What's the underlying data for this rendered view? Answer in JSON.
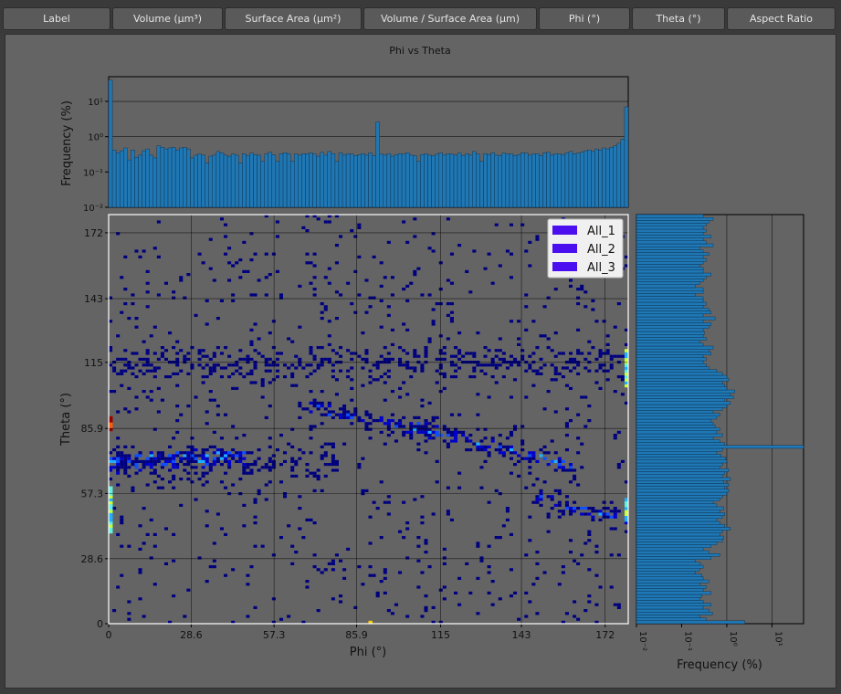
{
  "tabs": [
    {
      "label": "Label"
    },
    {
      "label": "Volume (µm³)"
    },
    {
      "label": "Surface Area (µm²)"
    },
    {
      "label": "Volume / Surface Area (µm)"
    },
    {
      "label": "Phi (°)"
    },
    {
      "label": "Theta (°)"
    },
    {
      "label": "Aspect Ratio"
    }
  ],
  "colors": {
    "bar": "#1f77b4",
    "panel_bg": "#646464",
    "legend_patch": "#4b0eef",
    "heat_scale": [
      "#00007f",
      "#0000cc",
      "#0f4fff",
      "#1fb0ff",
      "#5ff0e0",
      "#c8ff3c",
      "#ffd000",
      "#ff5a00",
      "#9a0000"
    ]
  },
  "chart_data": {
    "type": "heatmap",
    "title": "Phi vs Theta",
    "xlabel": "Phi (°)",
    "ylabel": "Theta (°)",
    "xlim": [
      0,
      180
    ],
    "ylim": [
      0,
      180
    ],
    "xticks": [
      "0",
      "28.6",
      "57.3",
      "85.9",
      "115",
      "143",
      "172"
    ],
    "yticks": [
      "0",
      "28.6",
      "57.3",
      "85.9",
      "115",
      "143",
      "172"
    ],
    "tick_values": [
      0,
      28.6,
      57.3,
      85.9,
      115,
      143,
      172
    ],
    "grid": true,
    "legend": {
      "placement": "top-right",
      "entries": [
        "All_1",
        "All_2",
        "All_3"
      ]
    },
    "bins": 140,
    "density_features": {
      "ridges": [
        {
          "axis": "theta",
          "center": 115,
          "phi_range": [
            0,
            180
          ],
          "strength": "medium"
        },
        {
          "axis": "theta",
          "center": 70,
          "phi_range": [
            0,
            80
          ],
          "strength": "medium"
        },
        {
          "shape": "line",
          "from": [
            0,
            70
          ],
          "to": [
            45,
            75
          ],
          "strength": "high"
        },
        {
          "shape": "line",
          "from": [
            70,
            95
          ],
          "to": [
            110,
            85
          ],
          "strength": "high"
        },
        {
          "shape": "line",
          "from": [
            110,
            85
          ],
          "to": [
            160,
            70
          ],
          "strength": "high"
        },
        {
          "shape": "line",
          "from": [
            150,
            55
          ],
          "to": [
            180,
            45
          ],
          "strength": "high"
        }
      ],
      "edge_columns": [
        {
          "phi": 0,
          "theta_range": [
            40,
            60
          ],
          "level": "high"
        },
        {
          "phi": 180,
          "theta_range": [
            105,
            120
          ],
          "level": "high"
        },
        {
          "phi": 180,
          "theta_range": [
            45,
            55
          ],
          "level": "high"
        },
        {
          "phi": 0,
          "theta_range": [
            85,
            90
          ],
          "level": "peak"
        },
        {
          "phi": 90,
          "theta_range": [
            0,
            1
          ],
          "level": "peak"
        }
      ]
    },
    "top_histogram": {
      "ylabel": "Frequency (%)",
      "scale": "log",
      "ylim": [
        0.01,
        50
      ],
      "ytick_labels": [
        "10¹",
        "10⁰",
        "10⁻¹",
        "10⁻²"
      ],
      "ytick_values": [
        10,
        1,
        0.1,
        0.01
      ],
      "values": [
        40,
        0.42,
        0.35,
        0.4,
        0.48,
        0.22,
        0.42,
        0.26,
        0.3,
        0.4,
        0.45,
        0.3,
        0.25,
        0.55,
        0.5,
        0.45,
        0.48,
        0.5,
        0.42,
        0.48,
        0.5,
        0.45,
        0.25,
        0.3,
        0.32,
        0.3,
        0.18,
        0.28,
        0.3,
        0.38,
        0.35,
        0.3,
        0.28,
        0.32,
        0.3,
        0.18,
        0.33,
        0.29,
        0.34,
        0.31,
        0.3,
        0.2,
        0.32,
        0.36,
        0.31,
        0.2,
        0.33,
        0.35,
        0.33,
        0.2,
        0.32,
        0.3,
        0.33,
        0.32,
        0.35,
        0.32,
        0.28,
        0.36,
        0.3,
        0.38,
        0.33,
        0.2,
        0.35,
        0.3,
        0.33,
        0.32,
        0.29,
        0.31,
        0.33,
        0.3,
        0.35,
        0.29,
        2.6,
        0.32,
        0.3,
        0.33,
        0.28,
        0.31,
        0.33,
        0.32,
        0.35,
        0.3,
        0.29,
        0.2,
        0.31,
        0.33,
        0.3,
        0.29,
        0.32,
        0.35,
        0.3,
        0.33,
        0.32,
        0.3,
        0.34,
        0.29,
        0.33,
        0.3,
        0.38,
        0.32,
        0.2,
        0.33,
        0.31,
        0.35,
        0.3,
        0.29,
        0.34,
        0.32,
        0.33,
        0.29,
        0.31,
        0.35,
        0.34,
        0.3,
        0.32,
        0.33,
        0.29,
        0.35,
        0.36,
        0.3,
        0.33,
        0.32,
        0.31,
        0.35,
        0.38,
        0.33,
        0.34,
        0.36,
        0.4,
        0.42,
        0.38,
        0.45,
        0.42,
        0.48,
        0.45,
        0.5,
        0.55,
        0.65,
        0.85,
        7
      ]
    },
    "right_histogram": {
      "xlabel": "Frequency (%)",
      "scale": "log",
      "xlim": [
        0.01,
        50
      ],
      "xtick_labels": [
        "10⁻²",
        "10⁻¹",
        "10⁰",
        "10¹"
      ],
      "xtick_values": [
        0.01,
        0.1,
        1,
        10
      ],
      "values": [
        2.5,
        0.35,
        0.25,
        0.48,
        0.4,
        0.3,
        0.45,
        0.3,
        0.25,
        0.28,
        0.45,
        0.3,
        0.35,
        0.25,
        0.4,
        0.3,
        0.28,
        0.2,
        0.25,
        0.3,
        0.26,
        0.2,
        0.45,
        0.7,
        0.4,
        0.3,
        0.45,
        0.6,
        0.8,
        0.85,
        0.7,
        0.8,
        1.2,
        0.9,
        0.7,
        0.6,
        0.8,
        0.9,
        0.7,
        0.85,
        0.6,
        0.5,
        0.7,
        0.8,
        1.0,
        1.1,
        0.9,
        1.1,
        0.85,
        1.2,
        0.8,
        0.9,
        1.1,
        0.7,
        0.8,
        1.0,
        0.95,
        0.75,
        0.6,
        0.8,
        50,
        0.9,
        0.7,
        0.5,
        0.8,
        0.6,
        0.7,
        0.55,
        0.5,
        0.45,
        0.6,
        0.7,
        0.5,
        0.8,
        1.0,
        1.2,
        0.9,
        1.4,
        1.2,
        1.5,
        1.0,
        0.9,
        0.8,
        1.1,
        1.0,
        0.8,
        0.6,
        0.4,
        0.35,
        0.3,
        0.35,
        0.3,
        0.45,
        0.4,
        0.5,
        0.3,
        0.25,
        0.35,
        0.3,
        0.32,
        0.3,
        0.4,
        0.45,
        0.3,
        0.55,
        0.3,
        0.45,
        0.4,
        0.3,
        0.35,
        0.3,
        0.3,
        0.2,
        0.3,
        0.3,
        0.2,
        0.25,
        0.3,
        0.35,
        0.45,
        0.3,
        0.3,
        0.25,
        0.3,
        0.35,
        0.3,
        0.4,
        0.3,
        0.25,
        0.5,
        0.35,
        0.3,
        0.45,
        0.3,
        0.35,
        0.3,
        0.35,
        0.4,
        0.5,
        0.3
      ]
    }
  }
}
